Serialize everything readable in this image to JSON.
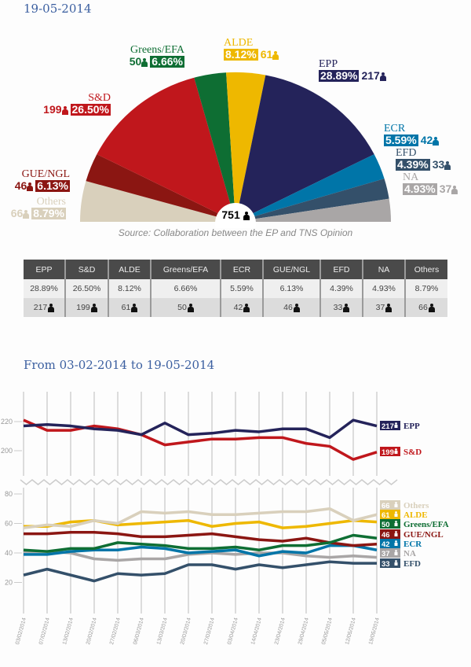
{
  "header": {
    "date": "19-05-2014",
    "total_seats": "751",
    "source": "Source: Collaboration between the EP and TNS Opinion",
    "range_title": "From 03-02-2014 to 19-05-2014"
  },
  "parties": [
    {
      "key": "others",
      "name": "Others",
      "pct": "8.79%",
      "seats": "66",
      "color": "#d9d0bc"
    },
    {
      "key": "gue",
      "name": "GUE/NGL",
      "pct": "6.13%",
      "seats": "46",
      "color": "#8b1612"
    },
    {
      "key": "sd",
      "name": "S&D",
      "pct": "26.50%",
      "seats": "199",
      "color": "#c0171c"
    },
    {
      "key": "greens",
      "name": "Greens/EFA",
      "pct": "6.66%",
      "seats": "50",
      "color": "#0e6e33"
    },
    {
      "key": "alde",
      "name": "ALDE",
      "pct": "8.12%",
      "seats": "61",
      "color": "#eeb800"
    },
    {
      "key": "epp",
      "name": "EPP",
      "pct": "28.89%",
      "seats": "217",
      "color": "#24235a"
    },
    {
      "key": "ecr",
      "name": "ECR",
      "pct": "5.59%",
      "seats": "42",
      "color": "#0075a8"
    },
    {
      "key": "efd",
      "name": "EFD",
      "pct": "4.39%",
      "seats": "33",
      "color": "#34506a"
    },
    {
      "key": "na",
      "name": "NA",
      "pct": "4.93%",
      "seats": "37",
      "color": "#a9a6a6"
    }
  ],
  "table": {
    "headers": [
      "EPP",
      "S&D",
      "ALDE",
      "Greens/EFA",
      "ECR",
      "GUE/NGL",
      "EFD",
      "NA",
      "Others"
    ],
    "pct": [
      "28.89%",
      "26.50%",
      "8.12%",
      "6.66%",
      "5.59%",
      "6.13%",
      "4.39%",
      "4.93%",
      "8.79%"
    ],
    "seats": [
      "217",
      "199",
      "61",
      "50",
      "42",
      "46",
      "33",
      "37",
      "66"
    ]
  },
  "chart_data": {
    "type": "line",
    "title": "From 03-02-2014 to 19-05-2014",
    "x": [
      "03/02/2014",
      "07/02/2014",
      "13/02/2014",
      "20/02/2014",
      "27/02/2014",
      "06/03/2014",
      "13/03/2014",
      "20/03/2014",
      "27/03/2014",
      "03/04/2014",
      "14/04/2014",
      "23/04/2014",
      "29/04/2014",
      "05/05/2014",
      "12/05/2014",
      "19/05/2014"
    ],
    "upper_axis": {
      "ticks": [
        "220",
        "200"
      ],
      "range": [
        190,
        230
      ]
    },
    "lower_axis": {
      "ticks": [
        "80",
        "60",
        "40",
        "20"
      ],
      "range": [
        0,
        90
      ]
    },
    "series": [
      {
        "name": "EPP",
        "color": "#24235a",
        "panel": "upper",
        "last": "217",
        "values": [
          217,
          218,
          217,
          215,
          214,
          211,
          219,
          211,
          212,
          214,
          213,
          215,
          215,
          209,
          221,
          217
        ]
      },
      {
        "name": "S&D",
        "color": "#c0171c",
        "panel": "upper",
        "last": "199",
        "values": [
          221,
          214,
          214,
          217,
          215,
          211,
          204,
          206,
          208,
          208,
          209,
          209,
          205,
          203,
          194,
          199
        ]
      },
      {
        "name": "Others",
        "color": "#d9d0bc",
        "panel": "lower",
        "last": "66",
        "values": [
          57,
          59,
          58,
          62,
          60,
          68,
          67,
          68,
          66,
          66,
          67,
          68,
          68,
          70,
          62,
          66
        ]
      },
      {
        "name": "ALDE",
        "color": "#eeb800",
        "panel": "lower",
        "last": "61",
        "values": [
          58,
          58,
          61,
          62,
          59,
          60,
          61,
          62,
          58,
          60,
          61,
          57,
          58,
          60,
          62,
          61
        ]
      },
      {
        "name": "Greens/EFA",
        "color": "#0e6e33",
        "panel": "lower",
        "last": "50",
        "values": [
          42,
          41,
          43,
          43,
          47,
          46,
          45,
          43,
          43,
          44,
          42,
          45,
          45,
          47,
          52,
          50
        ]
      },
      {
        "name": "GUE/NGL",
        "color": "#8b1612",
        "panel": "lower",
        "last": "46",
        "values": [
          53,
          53,
          54,
          54,
          53,
          51,
          51,
          52,
          53,
          51,
          49,
          48,
          50,
          47,
          45,
          46
        ]
      },
      {
        "name": "ECR",
        "color": "#0075a8",
        "panel": "lower",
        "last": "42",
        "values": [
          39,
          39,
          41,
          42,
          42,
          44,
          43,
          40,
          41,
          42,
          38,
          41,
          40,
          45,
          45,
          42
        ]
      },
      {
        "name": "NA",
        "color": "#a9a6a6",
        "panel": "lower",
        "last": "37",
        "values": [
          41,
          41,
          40,
          36,
          35,
          36,
          36,
          39,
          40,
          39,
          40,
          40,
          38,
          37,
          38,
          37
        ]
      },
      {
        "name": "EFD",
        "color": "#34506a",
        "panel": "lower",
        "last": "33",
        "values": [
          25,
          29,
          25,
          21,
          26,
          25,
          26,
          32,
          32,
          29,
          32,
          30,
          32,
          34,
          33,
          33
        ]
      }
    ]
  }
}
